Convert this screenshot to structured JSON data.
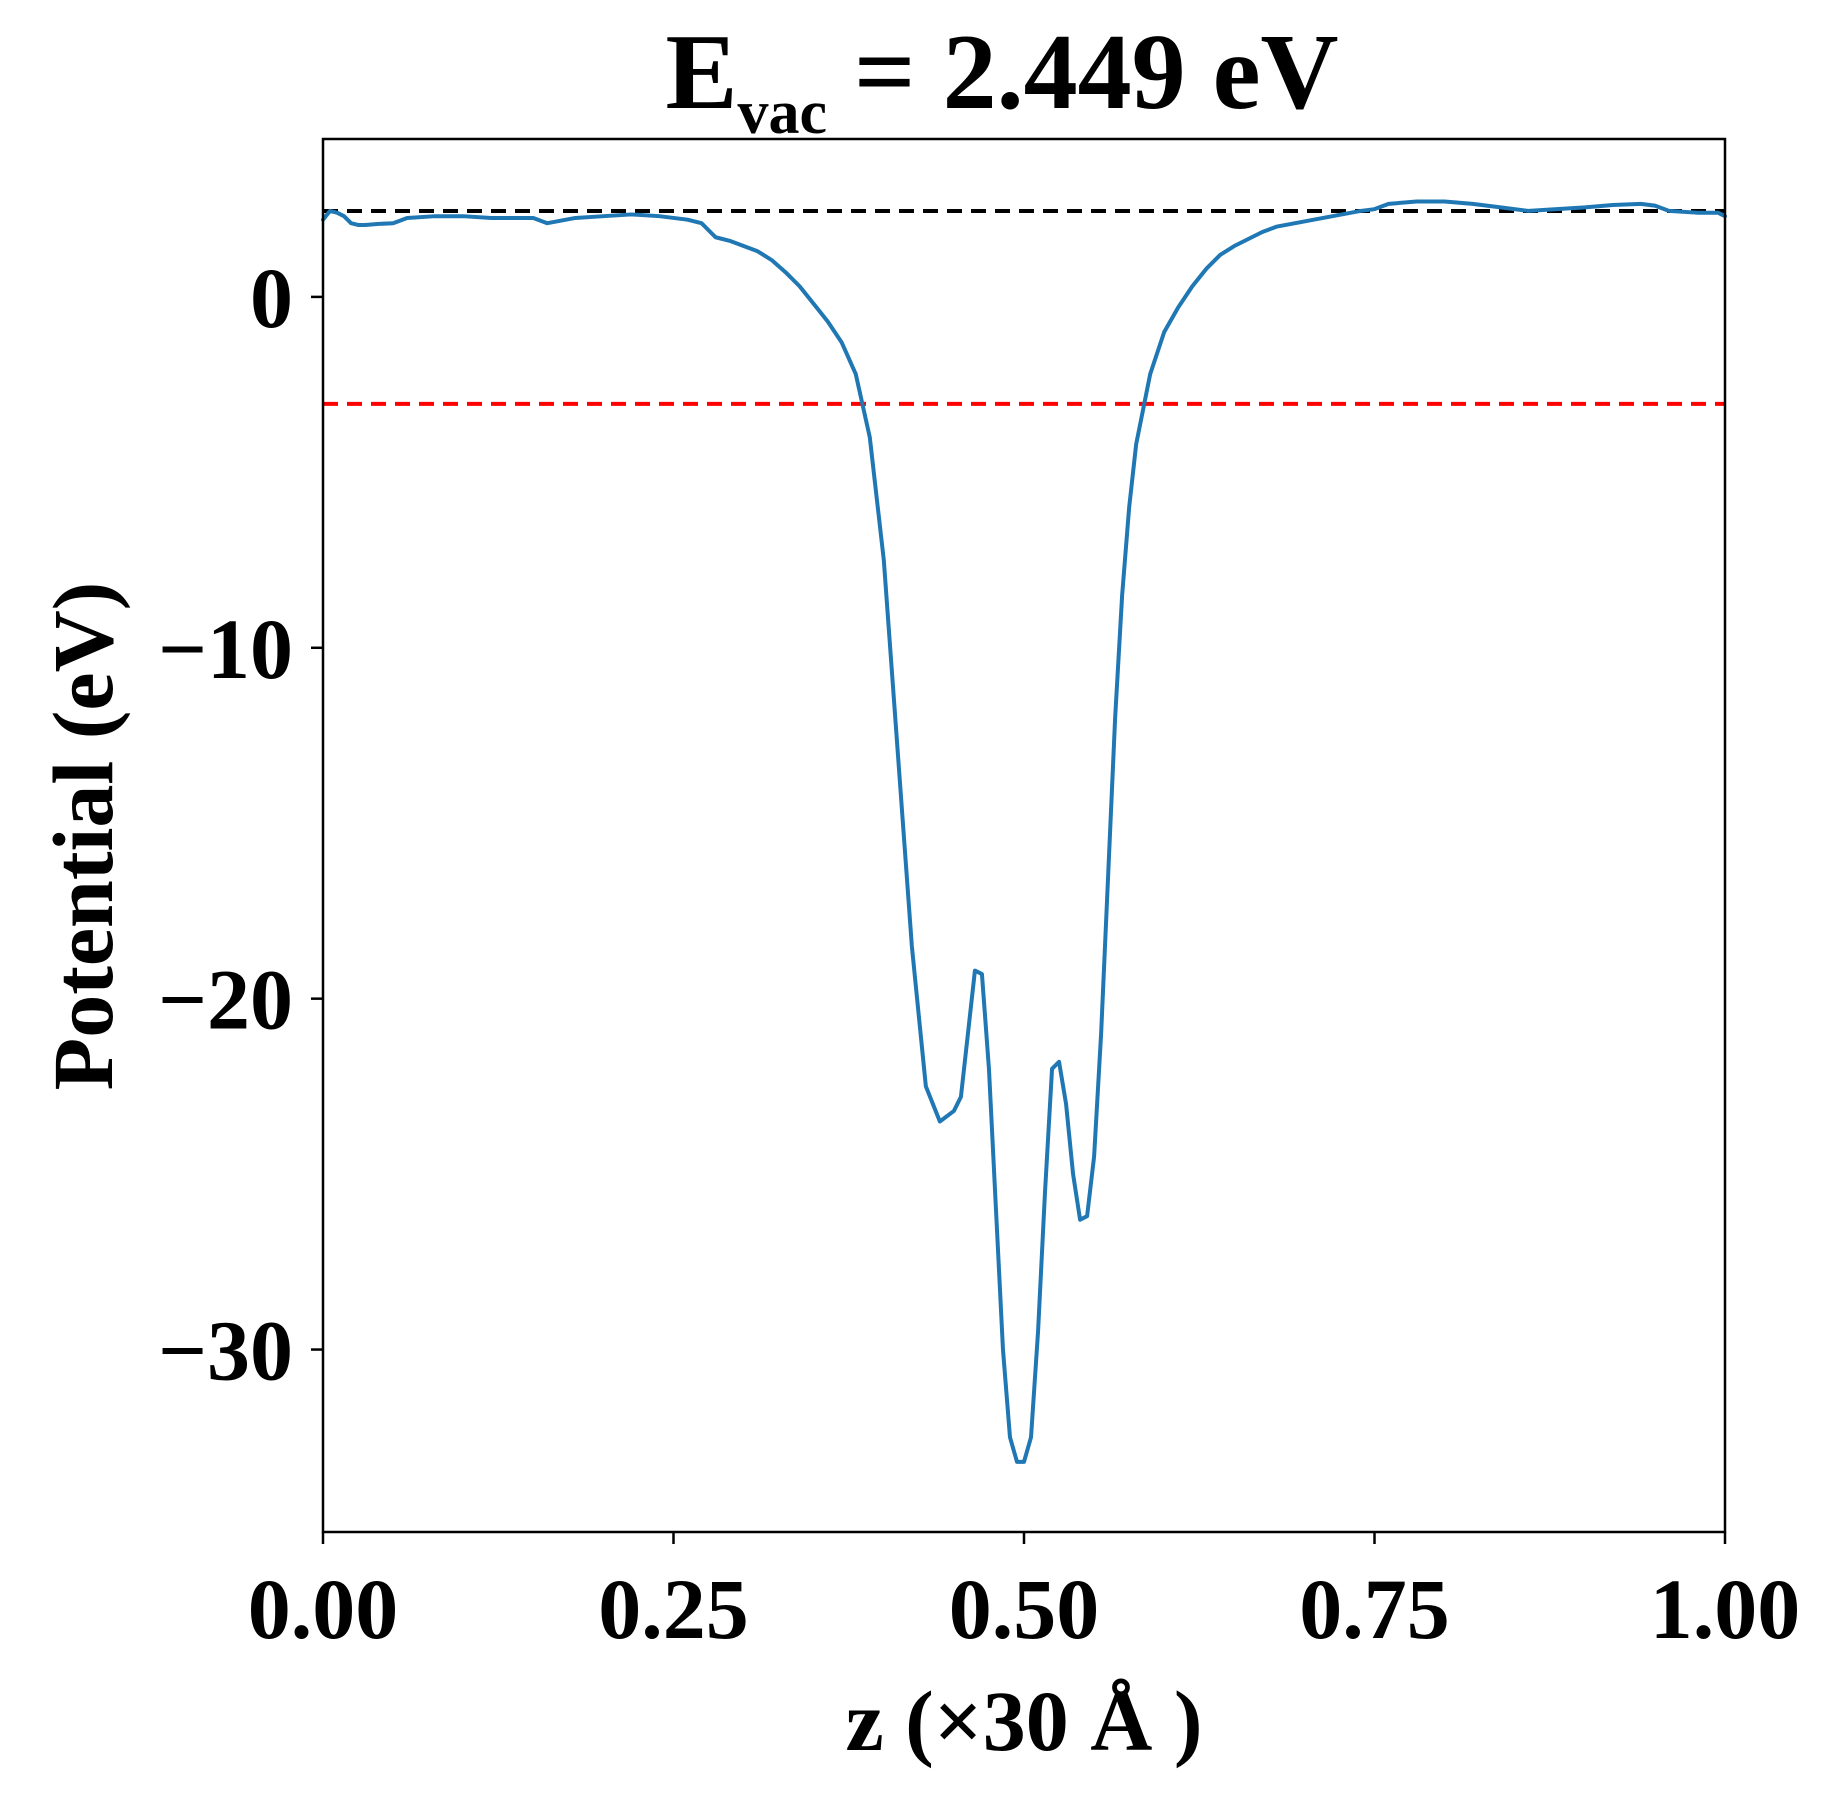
{
  "chart_data": {
    "type": "line",
    "title": {
      "prefix": "E",
      "subscript": "vac",
      "suffix": " = 2.449 eV"
    },
    "xlabel": "z (×30 Å )",
    "ylabel": "Potential (eV)",
    "xlim": [
      0.0,
      1.0
    ],
    "ylim": [
      -35.2,
      4.5
    ],
    "x_ticks": [
      0.0,
      0.25,
      0.5,
      0.75,
      1.0
    ],
    "x_tick_labels": [
      "0.00",
      "0.25",
      "0.50",
      "0.75",
      "1.00"
    ],
    "y_ticks": [
      0,
      -10,
      -20,
      -30
    ],
    "y_tick_labels": [
      "0",
      "−10",
      "−20",
      "−30"
    ],
    "grid": false,
    "colors": {
      "series": "#1f77b4",
      "vacuum_line": "#000000",
      "reference_line": "#ff0000"
    },
    "reference_lines": [
      {
        "id": "vacuum-level-line",
        "y": 2.449,
        "style": "dashed",
        "color": "#000000"
      },
      {
        "id": "red-reference-line",
        "y": -3.05,
        "style": "dashed",
        "color": "#ff0000"
      }
    ],
    "series": [
      {
        "x": [
          0.0,
          0.005,
          0.01,
          0.015,
          0.02,
          0.025,
          0.03,
          0.04,
          0.05,
          0.06,
          0.08,
          0.1,
          0.12,
          0.15,
          0.16,
          0.18,
          0.2,
          0.22,
          0.24,
          0.26,
          0.27,
          0.28,
          0.29,
          0.3,
          0.31,
          0.32,
          0.33,
          0.34,
          0.35,
          0.36,
          0.37,
          0.38,
          0.39,
          0.4,
          0.41,
          0.42,
          0.43,
          0.44,
          0.45,
          0.455,
          0.46,
          0.465,
          0.47,
          0.475,
          0.48,
          0.485,
          0.49,
          0.495,
          0.5,
          0.505,
          0.51,
          0.515,
          0.52,
          0.525,
          0.53,
          0.535,
          0.54,
          0.545,
          0.55,
          0.555,
          0.56,
          0.565,
          0.57,
          0.575,
          0.58,
          0.59,
          0.6,
          0.61,
          0.62,
          0.63,
          0.64,
          0.65,
          0.66,
          0.67,
          0.68,
          0.7,
          0.72,
          0.74,
          0.75,
          0.76,
          0.78,
          0.8,
          0.82,
          0.84,
          0.86,
          0.88,
          0.9,
          0.92,
          0.94,
          0.95,
          0.96,
          0.98,
          0.995,
          1.0
        ],
        "y": [
          2.2,
          2.45,
          2.4,
          2.3,
          2.1,
          2.05,
          2.05,
          2.08,
          2.1,
          2.25,
          2.3,
          2.3,
          2.25,
          2.25,
          2.1,
          2.25,
          2.3,
          2.35,
          2.3,
          2.2,
          2.1,
          1.7,
          1.6,
          1.45,
          1.3,
          1.05,
          0.7,
          0.3,
          -0.2,
          -0.7,
          -1.3,
          -2.2,
          -4.0,
          -7.5,
          -13.0,
          -18.5,
          -22.5,
          -23.5,
          -23.2,
          -22.8,
          -21.0,
          -19.2,
          -19.3,
          -22.0,
          -26.0,
          -30.0,
          -32.5,
          -33.2,
          -33.2,
          -32.5,
          -29.5,
          -25.5,
          -22.0,
          -21.8,
          -23.0,
          -25.0,
          -26.3,
          -26.2,
          -24.5,
          -21.0,
          -16.5,
          -12.0,
          -8.5,
          -6.0,
          -4.2,
          -2.2,
          -1.0,
          -0.3,
          0.3,
          0.8,
          1.2,
          1.45,
          1.65,
          1.85,
          2.0,
          2.15,
          2.3,
          2.45,
          2.5,
          2.65,
          2.72,
          2.72,
          2.65,
          2.55,
          2.45,
          2.5,
          2.55,
          2.62,
          2.65,
          2.6,
          2.45,
          2.4,
          2.4,
          2.3
        ]
      }
    ]
  }
}
